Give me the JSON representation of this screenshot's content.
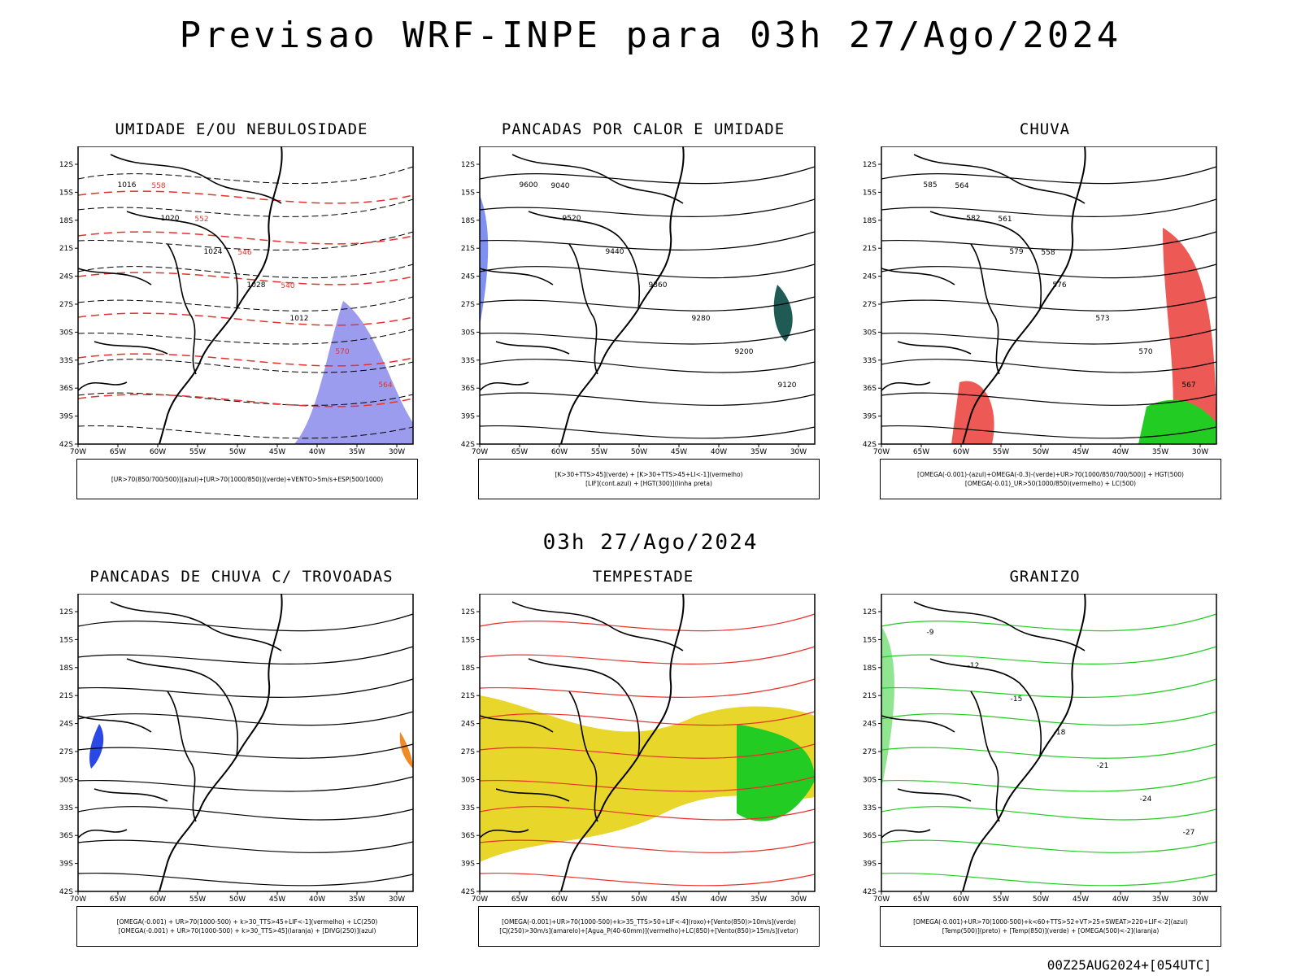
{
  "title": "Previsao WRF-INPE  para 03h 27/Ago/2024",
  "mid_title": "03h 27/Ago/2024",
  "footer": "00Z25AUG2024+[054UTC]",
  "lat_ticks": [
    "12S",
    "15S",
    "18S",
    "21S",
    "24S",
    "27S",
    "30S",
    "33S",
    "36S",
    "39S",
    "42S"
  ],
  "lon_ticks": [
    "70W",
    "65W",
    "60W",
    "55W",
    "50W",
    "45W",
    "40W",
    "35W",
    "30W"
  ],
  "panels": [
    {
      "title": "UMIDADE E/OU NEBULOSIDADE",
      "legend": [
        "[UR>70(850/700/500)](azul)+[UR>70(1000/850)](verde)+VENTO>5m/s+ESP(500/1000)"
      ],
      "labels": [
        "1016",
        "1020",
        "1024",
        "1028",
        "1012",
        "570",
        "564",
        "558",
        "552",
        "546",
        "540"
      ]
    },
    {
      "title": "PANCADAS POR CALOR E UMIDADE",
      "legend": [
        "[K>30+TTS>45](verde) + [K>30+TTS>45+LI<-1](vermelho)",
        "[LIF](cont.azul) + [HGT(300)](linha preta)"
      ],
      "labels": [
        "9600",
        "9520",
        "9440",
        "9360",
        "9280",
        "9200",
        "9120",
        "9040"
      ]
    },
    {
      "title": "CHUVA",
      "legend": [
        "[OMEGA(-0.001)-(azul)+OMEGA(-0.3)-(verde)+UR>70(1000/850/700/500)] + HGT(500)",
        "[OMEGA(-0.01)_UR>50(1000/850)(vermelho) + LC(500)"
      ],
      "labels": [
        "585",
        "582",
        "579",
        "576",
        "573",
        "570",
        "567",
        "564",
        "561",
        "558"
      ]
    },
    {
      "title": "PANCADAS DE CHUVA C/ TROVOADAS",
      "legend": [
        "[OMEGA(-0.001) + UR>70(1000-500) + k>30_TTS>45+LIF<-1](vermelho) + LC(250)",
        "[OMEGA(-0.001) + UR>70(1000-500) + k>30_TTS>45](laranja) + [DIVG(250)](azul)"
      ],
      "labels": []
    },
    {
      "title": "TEMPESTADE",
      "legend": [
        "[OMEGA(-0.001)+UR>70(1000-500)+k>35_TTS>50+LIF<-4](roxo)+[Vento(850)>10m/s](verde)",
        "[CJ(250)>30m/s](amarelo)+[Agua_P(40-60mm)](vermelho)+LC(850)+[Vento(850)>15m/s](vetor)"
      ],
      "labels": []
    },
    {
      "title": "GRANIZO",
      "legend": [
        "[OMEGA(-0.001)+UR>70(1000-500)+k<60+TTS>52+VT>25+SWEAT>220+LIF<-2](azul)",
        "[Temp(500)](preto) + [Temp(850)](verde) + [OMEGA(500)<-2](laranja)"
      ],
      "labels": [
        "-9",
        "-12",
        "-15",
        "-18",
        "-21",
        "-24",
        "-27"
      ]
    }
  ],
  "colors": {
    "red": "#e8312b",
    "blue": "#2a48e6",
    "green": "#22cc22",
    "yellow": "#e8d62a",
    "orange": "#f08a24",
    "teal": "#1f5a55"
  }
}
